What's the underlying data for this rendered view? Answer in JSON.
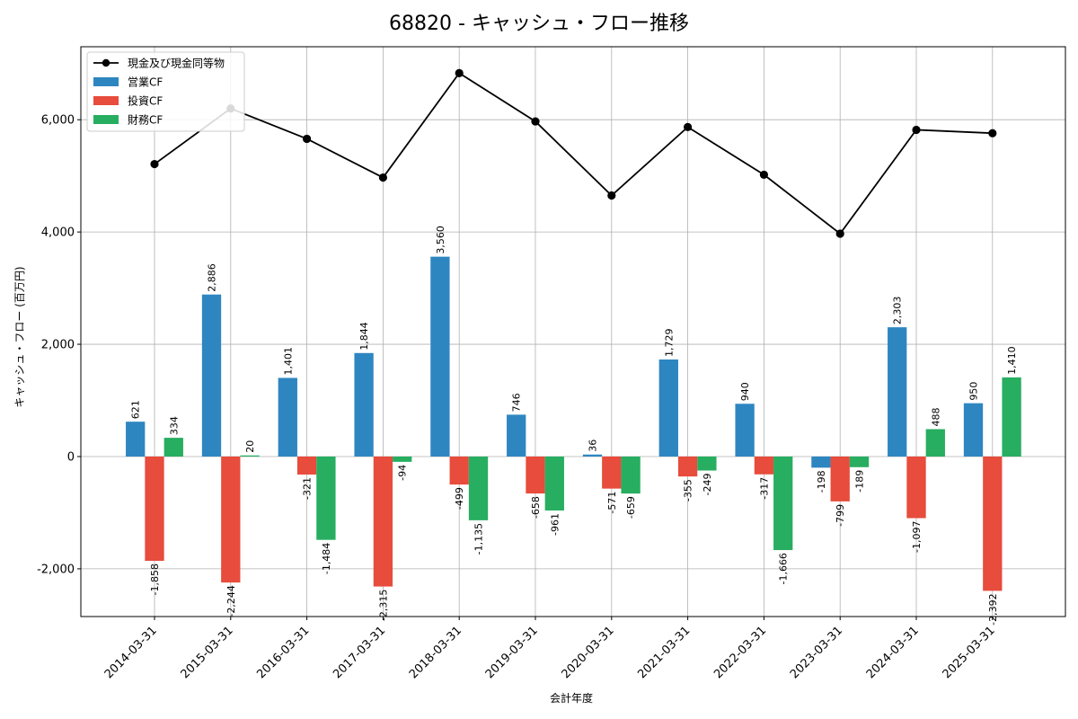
{
  "chart_data": {
    "type": "bar",
    "title": "68820 - キャッシュ・フロー推移",
    "xlabel": "会計年度",
    "ylabel": "キャッシュ・フロー (百万円)",
    "ylim": [
      -2850,
      7300
    ],
    "yticks": [
      -2000,
      0,
      2000,
      4000,
      6000
    ],
    "ytick_labels": [
      "-2,000",
      "0",
      "2,000",
      "4,000",
      "6,000"
    ],
    "grid": true,
    "legend_position": "top-left",
    "categories": [
      "2014-03-31",
      "2015-03-31",
      "2016-03-31",
      "2017-03-31",
      "2018-03-31",
      "2019-03-31",
      "2020-03-31",
      "2021-03-31",
      "2022-03-31",
      "2023-03-31",
      "2024-03-31",
      "2025-03-31"
    ],
    "series": [
      {
        "name": "営業CF",
        "color": "#2e86c1",
        "values": [
          621,
          2886,
          1401,
          1844,
          3560,
          746,
          36,
          1729,
          940,
          -198,
          2303,
          950
        ],
        "labels": [
          "621",
          "2,886",
          "1,401",
          "1,844",
          "3,560",
          "746",
          "36",
          "1,729",
          "940",
          "-198",
          "2,303",
          "950"
        ]
      },
      {
        "name": "投資CF",
        "color": "#e74c3c",
        "values": [
          -1858,
          -2244,
          -321,
          -2315,
          -499,
          -658,
          -571,
          -355,
          -317,
          -799,
          -1097,
          -2392
        ],
        "labels": [
          "-1,858",
          "-2,244",
          "-321",
          "-2,315",
          "-499",
          "-658",
          "-571",
          "-355",
          "-317",
          "-799",
          "-1,097",
          "-2,392"
        ]
      },
      {
        "name": "財務CF",
        "color": "#27ae60",
        "values": [
          334,
          20,
          -1484,
          -94,
          -1135,
          -961,
          -659,
          -249,
          -1666,
          -189,
          488,
          1410
        ],
        "labels": [
          "334",
          "20",
          "-1,484",
          "-94",
          "-1,135",
          "-961",
          "-659",
          "-249",
          "-1,666",
          "-189",
          "488",
          "1,410"
        ]
      }
    ],
    "line_series": {
      "name": "現金及び現金同等物",
      "color": "#000000",
      "values": [
        5210,
        6200,
        5660,
        4970,
        6830,
        5970,
        4650,
        5870,
        5020,
        3970,
        5820,
        5760
      ]
    }
  }
}
